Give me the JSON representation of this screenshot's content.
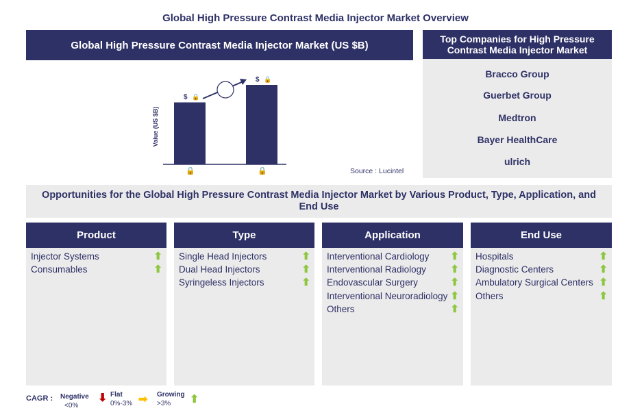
{
  "page_title": "Global High Pressure Contrast Media Injector Market Overview",
  "chart_header": "Global High Pressure Contrast Media Injector Market (US $B)",
  "chart_data": {
    "type": "bar",
    "title": "Global High Pressure Contrast Media Injector Market (US $B)",
    "ylabel": "Value (US $B)",
    "categories": [
      "locked",
      "locked"
    ],
    "values": [
      null,
      null
    ],
    "value_labels": [
      "$",
      "$"
    ],
    "bar_color": "#2e3166",
    "trend": "increase",
    "grid": false,
    "source": "Source : Lucintel"
  },
  "companies": {
    "header": "Top Companies for High Pressure Contrast Media Injector Market",
    "items": [
      "Bracco Group",
      "Guerbet Group",
      "Medtron",
      "Bayer HealthCare",
      "ulrich"
    ]
  },
  "opportunities_title": "Opportunities for the Global High Pressure Contrast Media Injector Market by Various Product, Type, Application, and End Use",
  "columns": [
    {
      "header": "Product",
      "items": [
        "Injector Systems",
        "Consumables"
      ]
    },
    {
      "header": "Type",
      "items": [
        "Single Head Injectors",
        "Dual Head Injectors",
        "Syringeless Injectors"
      ]
    },
    {
      "header": "Application",
      "items": [
        "Interventional Cardiology",
        "Interventional Radiology",
        "Endovascular Surgery",
        "Interventional Neuroradiology",
        "Others"
      ]
    },
    {
      "header": "End Use",
      "items": [
        "Hospitals",
        "Diagnostic Centers",
        "Ambulatory Surgical Centers",
        "Others"
      ]
    }
  ],
  "legend": {
    "label": "CAGR :",
    "negative": "Negative",
    "negative_range": "<0%",
    "flat": "Flat",
    "flat_range": "0%-3%",
    "growing": "Growing",
    "growing_range": ">3%"
  },
  "colors": {
    "navy": "#2e3166",
    "panel": "#ebebeb",
    "up": "#8dc63f",
    "down": "#c00000",
    "flat": "#ffc000"
  }
}
